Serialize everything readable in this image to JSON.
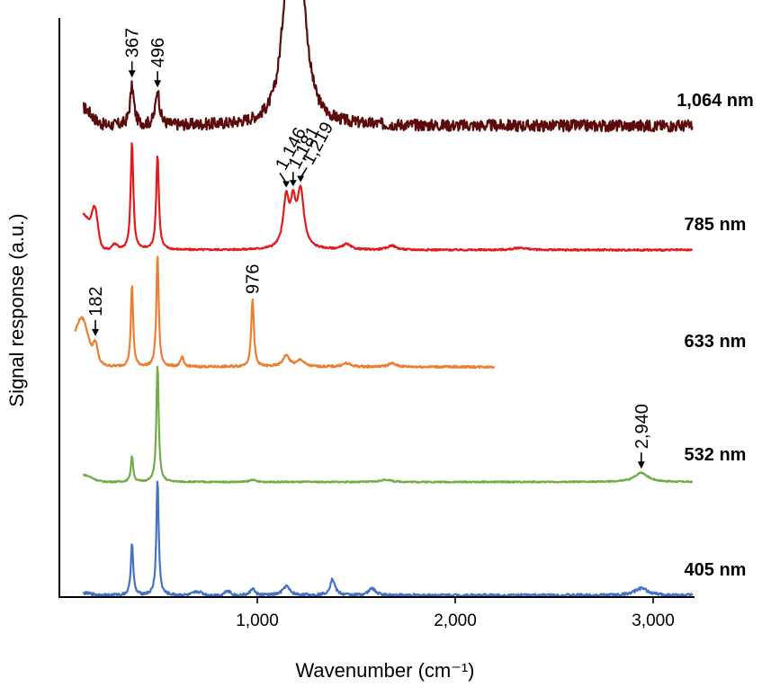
{
  "chart_data": {
    "type": "line",
    "xlabel": "Wavenumber (cm⁻¹)",
    "ylabel": "Signal response (a.u.)",
    "xlim": [
      0,
      3200
    ],
    "x_ticks": [
      1000,
      2000,
      3000
    ],
    "x_tick_labels": [
      "1,000",
      "2,000",
      "3,000"
    ],
    "grid": false,
    "series": [
      {
        "name": "1,064 nm",
        "color": "#5c0a0a",
        "x_range": [
          120,
          3200
        ],
        "peaks": [
          [
            367,
            0.33,
            12
          ],
          [
            496,
            0.3,
            12
          ],
          [
            1146,
            0.7,
            35
          ],
          [
            1181,
            0.83,
            30
          ],
          [
            1219,
            1.0,
            40
          ]
        ],
        "noise": 0.05,
        "broad": [],
        "start_rise": 0.25,
        "annotations": [
          {
            "x": 367,
            "text": "367",
            "orientation": "vertical"
          },
          {
            "x": 496,
            "text": "496",
            "orientation": "vertical"
          }
        ]
      },
      {
        "name": "785 nm",
        "color": "#e31a1c",
        "x_range": [
          120,
          3200
        ],
        "peaks": [
          [
            367,
            1.0,
            8
          ],
          [
            496,
            0.88,
            8
          ],
          [
            1146,
            0.45,
            18
          ],
          [
            1181,
            0.35,
            15
          ],
          [
            1219,
            0.52,
            20
          ],
          [
            1450,
            0.05,
            25
          ],
          [
            1680,
            0.04,
            25
          ],
          [
            2330,
            0.02,
            40
          ]
        ],
        "noise": 0.008,
        "broad": [
          [
            180,
            0.28,
            20
          ],
          [
            280,
            0.05,
            20
          ]
        ],
        "start_rise": 0.55,
        "annotations": [
          {
            "x": 1146,
            "text": "1,146",
            "orientation": "diagonal"
          },
          {
            "x": 1181,
            "text": "1,181",
            "orientation": "diagonal"
          },
          {
            "x": 1219,
            "text": "1,219",
            "orientation": "diagonal"
          }
        ]
      },
      {
        "name": "633 nm",
        "color": "#ed7d31",
        "x_range": [
          80,
          2200
        ],
        "peaks": [
          [
            182,
            0.2,
            15
          ],
          [
            367,
            0.72,
            7
          ],
          [
            496,
            1.0,
            7
          ],
          [
            620,
            0.08,
            10
          ],
          [
            976,
            0.6,
            8
          ],
          [
            1146,
            0.1,
            20
          ],
          [
            1219,
            0.06,
            20
          ],
          [
            1450,
            0.03,
            25
          ],
          [
            1680,
            0.03,
            25
          ]
        ],
        "noise": 0.01,
        "broad": [
          [
            120,
            0.28,
            40
          ]
        ],
        "start_rise": 0.35,
        "annotations": [
          {
            "x": 182,
            "text": "182",
            "orientation": "vertical"
          },
          {
            "x": 976,
            "text": "976",
            "orientation": "vertical-noarrow"
          }
        ]
      },
      {
        "name": "532 nm",
        "color": "#70ad47",
        "x_range": [
          120,
          3200
        ],
        "peaks": [
          [
            367,
            0.22,
            7
          ],
          [
            496,
            1.0,
            7
          ],
          [
            976,
            0.02,
            15
          ],
          [
            1650,
            0.02,
            30
          ],
          [
            2940,
            0.08,
            40
          ]
        ],
        "noise": 0.006,
        "broad": [],
        "start_rise": 0.1,
        "annotations": [
          {
            "x": 2940,
            "text": "2,940",
            "orientation": "vertical"
          }
        ]
      },
      {
        "name": "405 nm",
        "color": "#4472c4",
        "x_range": [
          120,
          3200
        ],
        "peaks": [
          [
            367,
            0.46,
            7
          ],
          [
            496,
            1.0,
            7
          ],
          [
            976,
            0.06,
            12
          ],
          [
            1146,
            0.08,
            20
          ],
          [
            1380,
            0.14,
            15
          ],
          [
            1580,
            0.06,
            20
          ],
          [
            2940,
            0.06,
            40
          ]
        ],
        "noise": 0.012,
        "broad": [
          [
            700,
            0.03,
            30
          ],
          [
            850,
            0.04,
            20
          ]
        ],
        "start_rise": 0.03,
        "annotations": []
      }
    ]
  }
}
